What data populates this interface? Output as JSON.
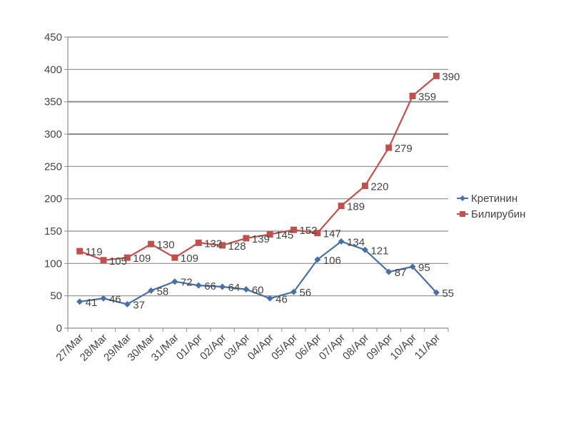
{
  "chart_data": {
    "type": "line",
    "categories": [
      "27/Mar",
      "28/Mar",
      "29/Mar",
      "30/Mar",
      "31/Mar",
      "01/Apr",
      "02/Apr",
      "03/Apr",
      "04/Apr",
      "05/Apr",
      "06/Apr",
      "07/Apr",
      "08/Apr",
      "09/Apr",
      "10/Apr",
      "11/Apr"
    ],
    "series": [
      {
        "name": "Кретинин",
        "color": "#4a6fa5",
        "marker": "diamond",
        "values": [
          41,
          46,
          37,
          58,
          72,
          66,
          64,
          60,
          46,
          56,
          106,
          134,
          121,
          87,
          95,
          55
        ]
      },
      {
        "name": "Билирубин",
        "color": "#c0504d",
        "marker": "square",
        "values": [
          119,
          105,
          109,
          130,
          109,
          132,
          128,
          139,
          145,
          152,
          147,
          189,
          220,
          279,
          359,
          390
        ]
      }
    ],
    "y_ticks": [
      "0",
      "50",
      "100",
      "150",
      "200",
      "250",
      "300",
      "350",
      "400",
      "450"
    ],
    "ylim": [
      0,
      450
    ],
    "grid": true,
    "legend_position": "right",
    "data_labels": true
  }
}
